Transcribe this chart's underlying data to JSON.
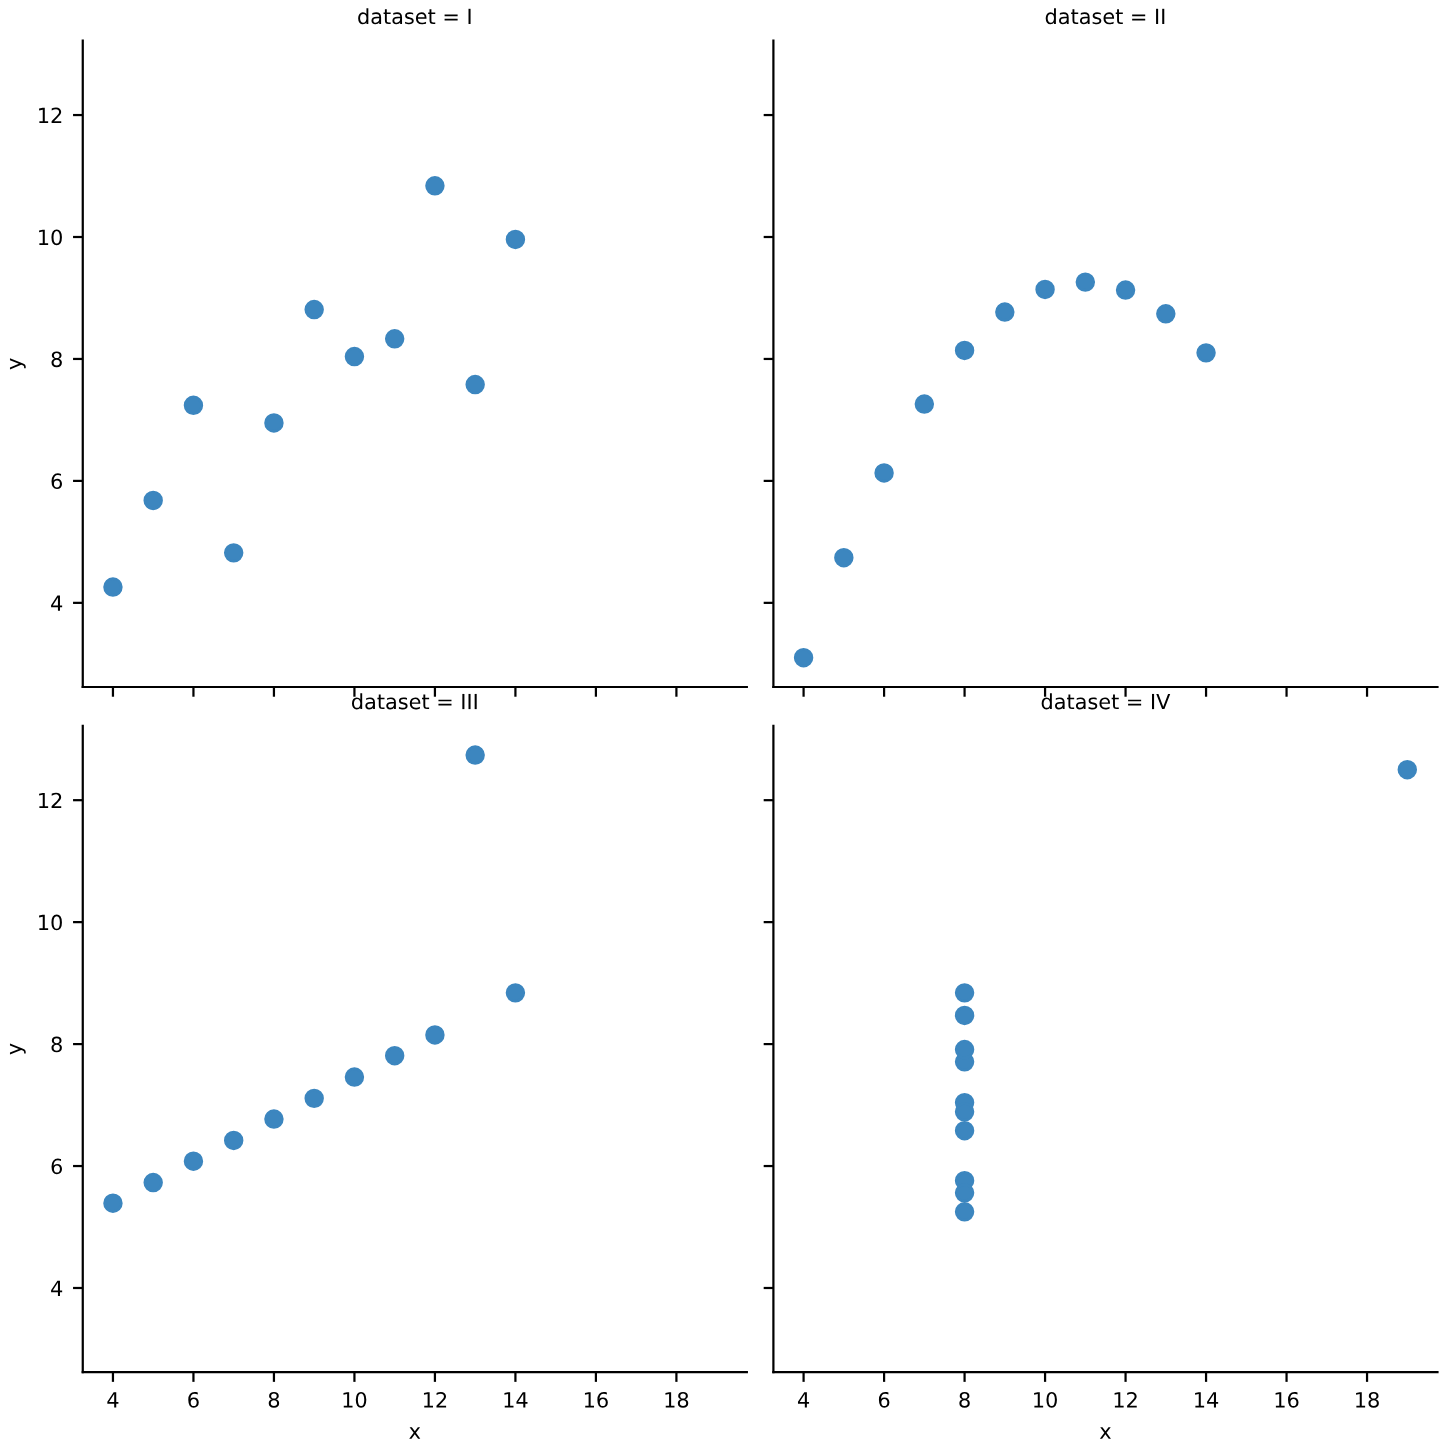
{
  "chart_data": [
    {
      "type": "scatter",
      "title": "dataset = I",
      "ylabel": "y",
      "x": [
        10,
        8,
        13,
        9,
        11,
        14,
        6,
        4,
        12,
        7,
        5
      ],
      "series": [
        {
          "color": "#3c86bf",
          "values": [
            8.04,
            6.95,
            7.58,
            8.81,
            8.33,
            9.96,
            7.24,
            4.26,
            10.84,
            4.82,
            5.68
          ]
        }
      ],
      "xlim": [
        3.25,
        19.75
      ],
      "ylim": [
        2.62,
        13.22
      ],
      "xticks": [
        4,
        6,
        8,
        10,
        12,
        14,
        16,
        18
      ],
      "yticks": [
        4,
        6,
        8,
        10,
        12
      ],
      "tick_labels": "y",
      "marker": "circle",
      "grid": false
    },
    {
      "type": "scatter",
      "title": "dataset = II",
      "x": [
        10,
        8,
        13,
        9,
        11,
        14,
        6,
        4,
        12,
        7,
        5
      ],
      "series": [
        {
          "color": "#3c86bf",
          "values": [
            9.14,
            8.14,
            8.74,
            8.77,
            9.26,
            8.1,
            6.13,
            3.1,
            9.13,
            7.26,
            4.74
          ]
        }
      ],
      "xlim": [
        3.25,
        19.75
      ],
      "ylim": [
        2.62,
        13.22
      ],
      "xticks": [
        4,
        6,
        8,
        10,
        12,
        14,
        16,
        18
      ],
      "yticks": [
        4,
        6,
        8,
        10,
        12
      ],
      "tick_labels": false,
      "marker": "circle",
      "grid": false
    },
    {
      "type": "scatter",
      "title": "dataset = III",
      "xlabel": "x",
      "ylabel": "y",
      "x": [
        10,
        8,
        13,
        9,
        11,
        14,
        6,
        4,
        12,
        7,
        5
      ],
      "series": [
        {
          "color": "#3c86bf",
          "values": [
            7.46,
            6.77,
            12.74,
            7.11,
            7.81,
            8.84,
            6.08,
            5.39,
            8.15,
            6.42,
            5.73
          ]
        }
      ],
      "xlim": [
        3.25,
        19.75
      ],
      "ylim": [
        2.62,
        13.22
      ],
      "xticks": [
        4,
        6,
        8,
        10,
        12,
        14,
        16,
        18
      ],
      "yticks": [
        4,
        6,
        8,
        10,
        12
      ],
      "marker": "circle",
      "grid": false
    },
    {
      "type": "scatter",
      "title": "dataset = IV",
      "xlabel": "x",
      "x": [
        8,
        8,
        8,
        8,
        8,
        8,
        8,
        19,
        8,
        8,
        8
      ],
      "series": [
        {
          "color": "#3c86bf",
          "values": [
            6.58,
            5.76,
            7.71,
            8.84,
            8.47,
            7.04,
            5.25,
            12.5,
            5.56,
            7.91,
            6.89
          ]
        }
      ],
      "xlim": [
        3.25,
        19.75
      ],
      "ylim": [
        2.62,
        13.22
      ],
      "xticks": [
        4,
        6,
        8,
        10,
        12,
        14,
        16,
        18
      ],
      "yticks": [
        4,
        6,
        8,
        10,
        12
      ],
      "tick_labels": "x",
      "marker": "circle",
      "grid": false
    }
  ]
}
